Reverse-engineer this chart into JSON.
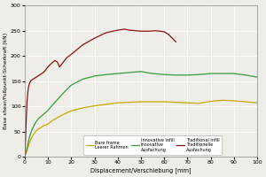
{
  "title": "",
  "xlabel": "Displacement/Verschiebung [mm]",
  "ylabel": "Base shear/Fußpunkt-Scherkraft [kN]",
  "xlim": [
    0,
    100
  ],
  "ylim": [
    0,
    300
  ],
  "xticks": [
    0,
    10,
    20,
    30,
    40,
    50,
    60,
    70,
    80,
    90,
    100
  ],
  "yticks": [
    0,
    50,
    100,
    150,
    200,
    250,
    300
  ],
  "legend_entries": [
    {
      "label": "Bare frame\nLeerer Rahmen",
      "color": "#c8a800"
    },
    {
      "label": "Innovative infill\nInnovative\nAusfachung",
      "color": "#3a9a3a"
    },
    {
      "label": "Traditional infill\nTraditionelle\nAusfachung",
      "color": "#8b1010"
    }
  ],
  "bare_frame": {
    "x": [
      0,
      0.5,
      1,
      1.5,
      2,
      3,
      4,
      5,
      6,
      7,
      8,
      9,
      10,
      12,
      15,
      18,
      20,
      25,
      30,
      35,
      40,
      45,
      50,
      55,
      60,
      65,
      70,
      75,
      80,
      85,
      90,
      95,
      100
    ],
    "y": [
      0,
      6,
      12,
      20,
      28,
      38,
      46,
      52,
      55,
      58,
      61,
      63,
      65,
      72,
      80,
      87,
      91,
      97,
      101,
      104,
      107,
      108,
      109,
      109,
      109,
      108,
      107,
      106,
      110,
      112,
      111,
      109,
      107
    ]
  },
  "innovative": {
    "x": [
      0,
      0.5,
      1,
      1.5,
      2,
      3,
      4,
      5,
      6,
      7,
      8,
      9,
      10,
      12,
      15,
      18,
      20,
      25,
      30,
      35,
      40,
      45,
      50,
      55,
      60,
      65,
      70,
      75,
      80,
      85,
      90,
      95,
      100
    ],
    "y": [
      0,
      8,
      18,
      28,
      38,
      52,
      62,
      70,
      76,
      80,
      84,
      88,
      92,
      103,
      118,
      133,
      142,
      154,
      160,
      163,
      165,
      167,
      169,
      165,
      163,
      162,
      162,
      163,
      165,
      165,
      165,
      162,
      158
    ]
  },
  "traditional": {
    "x": [
      0,
      0.3,
      0.5,
      0.8,
      1,
      1.5,
      2,
      2.5,
      3,
      4,
      5,
      6,
      7,
      8,
      9,
      10,
      11,
      12,
      13,
      14,
      15,
      18,
      20,
      25,
      30,
      35,
      40,
      43,
      45,
      50,
      54,
      56,
      58,
      60,
      62,
      65
    ],
    "y": [
      0,
      30,
      55,
      90,
      110,
      135,
      145,
      150,
      152,
      155,
      158,
      161,
      164,
      167,
      172,
      178,
      183,
      187,
      191,
      188,
      178,
      196,
      203,
      222,
      235,
      246,
      251,
      253,
      251,
      249,
      249,
      250,
      249,
      248,
      242,
      228
    ]
  },
  "bg_color": "#eeede8",
  "grid_color": "#ffffff",
  "line_width": 0.9
}
